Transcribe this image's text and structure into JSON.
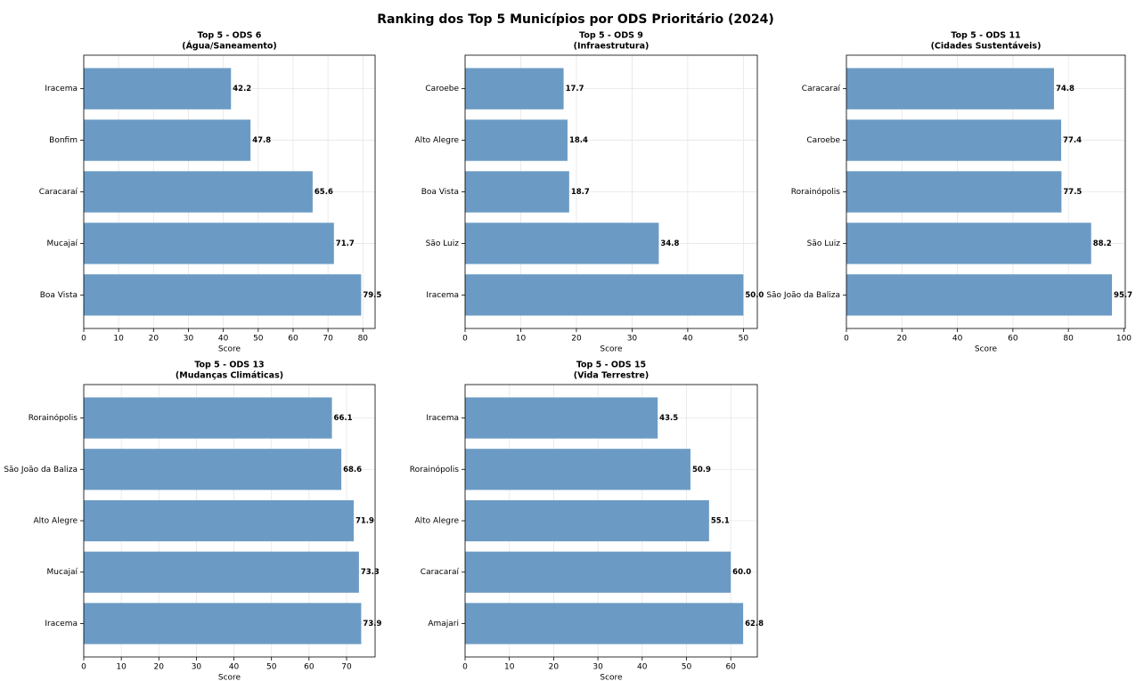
{
  "title": "Ranking dos Top 5 Municípios por ODS Prioritário (2024)",
  "chart_data": [
    {
      "type": "bar",
      "orientation": "horizontal",
      "title": "Top 5 - ODS 6",
      "subtitle": "(Água/Saneamento)",
      "xlabel": "Score",
      "categories": [
        "Iracema",
        "Bonfim",
        "Caracaraí",
        "Mucajaí",
        "Boa Vista"
      ],
      "values": [
        42.2,
        47.8,
        65.6,
        71.7,
        79.5
      ],
      "value_labels": [
        "42.2",
        "47.8",
        "65.6",
        "71.7",
        "79.5"
      ],
      "color": "#6b9bc4",
      "xlim": [
        0,
        83.5
      ],
      "xticks": [
        0,
        10,
        20,
        30,
        40,
        50,
        60,
        70,
        80
      ],
      "grid": true
    },
    {
      "type": "bar",
      "orientation": "horizontal",
      "title": "Top 5 - ODS 9",
      "subtitle": "(Infraestrutura)",
      "xlabel": "Score",
      "categories": [
        "Caroebe",
        "Alto Alegre",
        "Boa Vista",
        "São Luiz",
        "Iracema"
      ],
      "values": [
        17.7,
        18.4,
        18.7,
        34.8,
        50
      ],
      "value_labels": [
        "17.7",
        "18.4",
        "18.7",
        "34.8",
        "50.0"
      ],
      "color": "#6b9bc4",
      "xlim": [
        0,
        52.5
      ],
      "xticks": [
        0,
        10,
        20,
        30,
        40,
        50
      ],
      "grid": true
    },
    {
      "type": "bar",
      "orientation": "horizontal",
      "title": "Top 5 - ODS 11",
      "subtitle": "(Cidades Sustentáveis)",
      "xlabel": "Score",
      "categories": [
        "Caracaraí",
        "Caroebe",
        "Rorainópolis",
        "São Luiz",
        "São João da Baliza"
      ],
      "values": [
        74.8,
        77.4,
        77.5,
        88.2,
        95.7
      ],
      "value_labels": [
        "74.8",
        "77.4",
        "77.5",
        "88.2",
        "95.7"
      ],
      "color": "#6b9bc4",
      "xlim": [
        0,
        100.5
      ],
      "xticks": [
        0,
        20,
        40,
        60,
        80,
        100
      ],
      "grid": true
    },
    {
      "type": "bar",
      "orientation": "horizontal",
      "title": "Top 5 - ODS 13",
      "subtitle": "(Mudanças Climáticas)",
      "xlabel": "Score",
      "categories": [
        "Rorainópolis",
        "São João da Baliza",
        "Alto Alegre",
        "Mucajaí",
        "Iracema"
      ],
      "values": [
        66.1,
        68.6,
        71.9,
        73.3,
        73.9
      ],
      "value_labels": [
        "66.1",
        "68.6",
        "71.9",
        "73.3",
        "73.9"
      ],
      "color": "#6b9bc4",
      "xlim": [
        0,
        77.6
      ],
      "xticks": [
        0,
        10,
        20,
        30,
        40,
        50,
        60,
        70
      ],
      "grid": true
    },
    {
      "type": "bar",
      "orientation": "horizontal",
      "title": "Top 5 - ODS 15",
      "subtitle": "(Vida Terrestre)",
      "xlabel": "Score",
      "categories": [
        "Iracema",
        "Rorainópolis",
        "Alto Alegre",
        "Caracaraí",
        "Amajari"
      ],
      "values": [
        43.5,
        50.9,
        55.1,
        60,
        62.8
      ],
      "value_labels": [
        "43.5",
        "50.9",
        "55.1",
        "60.0",
        "62.8"
      ],
      "color": "#6b9bc4",
      "xlim": [
        0,
        66
      ],
      "xticks": [
        0,
        10,
        20,
        30,
        40,
        50,
        60
      ],
      "grid": true
    }
  ]
}
